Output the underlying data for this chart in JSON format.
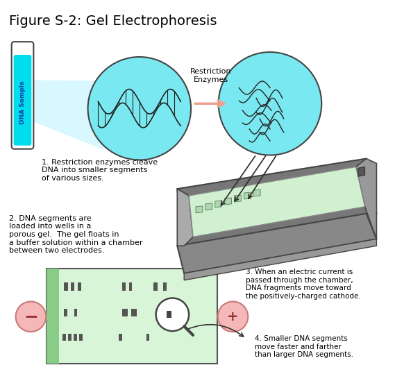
{
  "title": "Figure S-2: Gel Electrophoresis",
  "title_fontsize": 14,
  "bg_color": "#ffffff",
  "text1": "1. Restriction enzymes cleave\nDNA into smaller segments\nof various sizes.",
  "text2": "2. DNA segments are\nloaded into wells in a\nporous gel.  The gel floats in\na buffer solution within a chamber\nbetween two electrodes.",
  "text3": "3. When an electric current is\npassed through the chamber,\nDNA fragments move toward\nthe positively-charged cathode.",
  "text4": "4. Smaller DNA segments\nmove faster and farther\nthan larger DNA segments.",
  "label_restriction": "Restriction\nEnzymes",
  "label_dna": "DNA Sample",
  "circle_color": "#7ae8f0",
  "gel_color": "#d8f5d8",
  "tube_color": "#00ddee",
  "electrode_color": "#f5b8b8",
  "arrow_color": "#f0a090",
  "band_color": "#555555",
  "box_dark": "#666666",
  "box_mid": "#888888",
  "box_light": "#aaaaaa",
  "gel_top_color": "#d0f0d0",
  "strip_color": "#88cc88"
}
